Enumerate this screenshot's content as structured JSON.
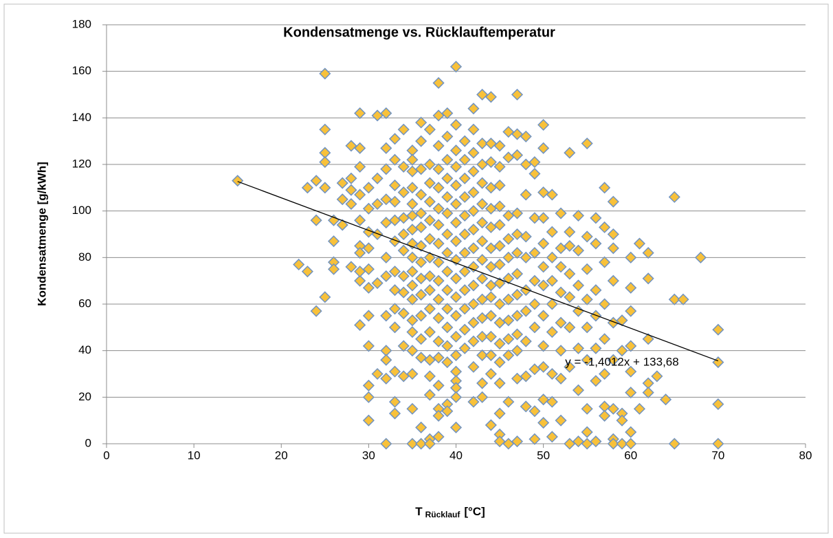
{
  "chart_data": {
    "type": "scatter",
    "title": "Kondensatmenge vs. Rücklauftemperatur",
    "x_label": {
      "main": "T",
      "subscript": "Rücklauf",
      "unit": "[°C]"
    },
    "y_label": "Kondensatmenge [g/kWh]",
    "xlim": [
      0,
      80
    ],
    "xticks": [
      0,
      10,
      20,
      30,
      40,
      50,
      60,
      70,
      80
    ],
    "ylim": [
      0,
      180
    ],
    "yticks": [
      0,
      20,
      40,
      60,
      80,
      100,
      120,
      140,
      160,
      180
    ],
    "grid": true,
    "marker_fill": "#f8c13a",
    "marker_stroke": "#7193c0",
    "trendline": {
      "label": "y = -1,4012x + 133,68",
      "slope": -1.4012,
      "intercept": 133.68,
      "x_range": [
        15,
        70
      ],
      "color": "#000000"
    },
    "x": [
      15,
      22,
      23,
      23,
      24,
      24,
      24,
      25,
      25,
      25,
      25,
      25,
      25,
      26,
      26,
      26,
      26,
      27,
      27,
      27,
      28,
      28,
      28,
      28,
      28,
      29,
      29,
      29,
      29,
      29,
      29,
      29,
      29,
      29,
      29,
      30,
      30,
      30,
      30,
      30,
      30,
      30,
      30,
      30,
      30,
      30,
      31,
      31,
      31,
      31,
      31,
      31,
      32,
      32,
      32,
      32,
      32,
      32,
      32,
      32,
      32,
      32,
      32,
      32,
      33,
      33,
      33,
      33,
      33,
      33,
      33,
      33,
      33,
      33,
      33,
      33,
      33,
      34,
      34,
      34,
      34,
      34,
      34,
      34,
      34,
      34,
      34,
      34,
      35,
      35,
      35,
      35,
      35,
      35,
      35,
      35,
      35,
      35,
      35,
      35,
      35,
      35,
      35,
      35,
      35,
      35,
      36,
      36,
      36,
      36,
      36,
      36,
      36,
      36,
      36,
      36,
      36,
      36,
      36,
      36,
      36,
      37,
      37,
      37,
      37,
      37,
      37,
      37,
      37,
      37,
      37,
      37,
      37,
      37,
      37,
      37,
      37,
      38,
      38,
      38,
      38,
      38,
      38,
      38,
      38,
      38,
      38,
      38,
      38,
      38,
      38,
      38,
      38,
      38,
      38,
      39,
      39,
      39,
      39,
      39,
      39,
      39,
      39,
      39,
      39,
      39,
      39,
      39,
      39,
      39,
      39,
      40,
      40,
      40,
      40,
      40,
      40,
      40,
      40,
      40,
      40,
      40,
      40,
      40,
      40,
      40,
      40,
      40,
      40,
      40,
      41,
      41,
      41,
      41,
      41,
      41,
      41,
      41,
      41,
      41,
      41,
      41,
      42,
      42,
      42,
      42,
      42,
      42,
      42,
      42,
      42,
      42,
      42,
      42,
      42,
      42,
      42,
      43,
      43,
      43,
      43,
      43,
      43,
      43,
      43,
      43,
      43,
      43,
      43,
      43,
      43,
      43,
      44,
      44,
      44,
      44,
      44,
      44,
      44,
      44,
      44,
      44,
      44,
      44,
      44,
      44,
      44,
      45,
      45,
      45,
      45,
      45,
      45,
      45,
      45,
      45,
      45,
      45,
      45,
      45,
      45,
      45,
      45,
      46,
      46,
      46,
      46,
      46,
      46,
      46,
      46,
      46,
      46,
      46,
      46,
      47,
      47,
      47,
      47,
      47,
      47,
      47,
      47,
      47,
      47,
      47,
      47,
      47,
      48,
      48,
      48,
      48,
      48,
      48,
      48,
      48,
      48,
      48,
      49,
      49,
      49,
      49,
      49,
      49,
      49,
      49,
      49,
      49,
      50,
      50,
      50,
      50,
      50,
      50,
      50,
      50,
      50,
      50,
      50,
      50,
      51,
      51,
      51,
      51,
      51,
      51,
      51,
      51,
      51,
      52,
      52,
      52,
      52,
      52,
      52,
      52,
      52,
      53,
      53,
      53,
      53,
      53,
      53,
      53,
      53,
      54,
      54,
      54,
      54,
      54,
      54,
      54,
      55,
      55,
      55,
      55,
      55,
      55,
      55,
      55,
      55,
      56,
      56,
      56,
      56,
      56,
      56,
      56,
      57,
      57,
      57,
      57,
      57,
      57,
      57,
      57,
      58,
      58,
      58,
      58,
      58,
      58,
      58,
      58,
      58,
      59,
      59,
      59,
      59,
      59,
      60,
      60,
      60,
      60,
      60,
      60,
      60,
      60,
      61,
      61,
      62,
      62,
      62,
      62,
      62,
      63,
      64,
      65,
      65,
      65,
      66,
      68,
      70,
      70,
      70,
      70
    ],
    "values": [
      113,
      77,
      74,
      110,
      57,
      96,
      113,
      159,
      135,
      125,
      121,
      110,
      63,
      96,
      87,
      78,
      75,
      112,
      105,
      94,
      128,
      114,
      109,
      103,
      76,
      142,
      127,
      119,
      107,
      96,
      85,
      82,
      70,
      51,
      74,
      110,
      101,
      91,
      84,
      75,
      67,
      55,
      42,
      25,
      20,
      10,
      141,
      114,
      103,
      90,
      69,
      30,
      142,
      127,
      118,
      105,
      95,
      80,
      72,
      55,
      40,
      36,
      28,
      0,
      131,
      122,
      111,
      104,
      96,
      87,
      74,
      66,
      58,
      50,
      31,
      18,
      13,
      135,
      119,
      108,
      97,
      90,
      83,
      72,
      65,
      56,
      42,
      29,
      126,
      122,
      117,
      110,
      103,
      98,
      92,
      86,
      80,
      74,
      68,
      62,
      53,
      48,
      40,
      30,
      15,
      0,
      138,
      130,
      118,
      107,
      99,
      93,
      85,
      78,
      71,
      64,
      55,
      45,
      37,
      7,
      0,
      135,
      120,
      112,
      104,
      96,
      88,
      80,
      72,
      66,
      58,
      48,
      36,
      29,
      21,
      2,
      0,
      155,
      141,
      128,
      118,
      110,
      101,
      94,
      86,
      78,
      70,
      62,
      54,
      44,
      37,
      25,
      15,
      12,
      3,
      142,
      132,
      122,
      114,
      106,
      99,
      90,
      82,
      74,
      66,
      58,
      50,
      42,
      35,
      17,
      14,
      162,
      137,
      126,
      119,
      111,
      103,
      95,
      87,
      79,
      71,
      63,
      55,
      46,
      38,
      31,
      27,
      24,
      20,
      7,
      130,
      122,
      114,
      106,
      98,
      90,
      82,
      74,
      66,
      58,
      49,
      41,
      144,
      135,
      125,
      117,
      108,
      100,
      92,
      84,
      76,
      68,
      60,
      52,
      44,
      33,
      18,
      150,
      129,
      120,
      112,
      103,
      95,
      87,
      79,
      71,
      62,
      54,
      46,
      38,
      26,
      20,
      149,
      129,
      121,
      110,
      101,
      93,
      84,
      76,
      68,
      63,
      55,
      46,
      38,
      30,
      8,
      128,
      119,
      111,
      102,
      94,
      85,
      77,
      69,
      60,
      52,
      43,
      35,
      26,
      13,
      4,
      1,
      134,
      123,
      98,
      88,
      80,
      71,
      62,
      53,
      45,
      38,
      18,
      0,
      150,
      133,
      124,
      99,
      90,
      82,
      73,
      64,
      55,
      47,
      40,
      28,
      1,
      132,
      120,
      107,
      89,
      80,
      66,
      57,
      44,
      29,
      16,
      121,
      116,
      97,
      82,
      70,
      60,
      50,
      32,
      14,
      2,
      137,
      127,
      108,
      97,
      86,
      76,
      68,
      55,
      42,
      33,
      19,
      9,
      107,
      91,
      80,
      70,
      60,
      48,
      30,
      18,
      3,
      99,
      84,
      76,
      65,
      52,
      40,
      28,
      10,
      125,
      91,
      85,
      73,
      63,
      50,
      33,
      0,
      98,
      83,
      68,
      57,
      41,
      23,
      1,
      129,
      89,
      75,
      62,
      50,
      36,
      15,
      5,
      0,
      97,
      86,
      66,
      55,
      41,
      27,
      1,
      110,
      93,
      78,
      60,
      45,
      30,
      16,
      12,
      104,
      90,
      84,
      70,
      52,
      36,
      15,
      2,
      0,
      53,
      40,
      13,
      10,
      0,
      80,
      67,
      57,
      42,
      31,
      22,
      5,
      0,
      86,
      15,
      82,
      71,
      45,
      26,
      22,
      29,
      19,
      106,
      62,
      0,
      62,
      80,
      49,
      35,
      17,
      0
    ]
  }
}
